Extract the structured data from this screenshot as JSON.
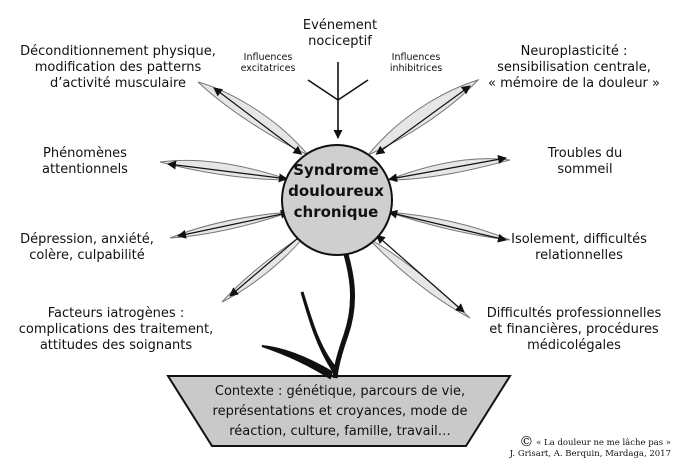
{
  "event": {
    "title": "Evénement\nnociceptif",
    "left_influence": "Influences\nexcitatrices",
    "right_influence": "Influences\ninhibitrices"
  },
  "center": {
    "label": "Syndrome\ndouloureux\nchronique"
  },
  "factors": {
    "left": [
      "Déconditionnement physique,\nmodification des patterns\nd’activité musculaire",
      "Phénomènes\nattentionnels",
      "Dépression, anxiété,\ncolère, culpabilité",
      "Facteurs iatrogènes :\ncomplications des traitement,\nattitudes des soignants"
    ],
    "right": [
      "Neuroplasticité :\nsensibilisation centrale,\n« mémoire de la douleur »",
      "Troubles du\nsommeil",
      "Isolement, difficultés\nrelationnelles",
      "Difficultés professionnelles\net financières, procédures\nmédicolégales"
    ]
  },
  "context": "Contexte : génétique, parcours de vie,\nreprésentations et croyances, mode de\nréaction, culture, famille, travail…",
  "credit": {
    "symbol": "©",
    "line1": "« La douleur ne me lâche pas »",
    "line2": "J. Grisart, A. Berquin, Mardaga, 2017"
  },
  "colors": {
    "petal": "#e6e6e6",
    "center": "#cfcfcf",
    "pot": "#c9c9c9",
    "stroke": "#111111"
  }
}
